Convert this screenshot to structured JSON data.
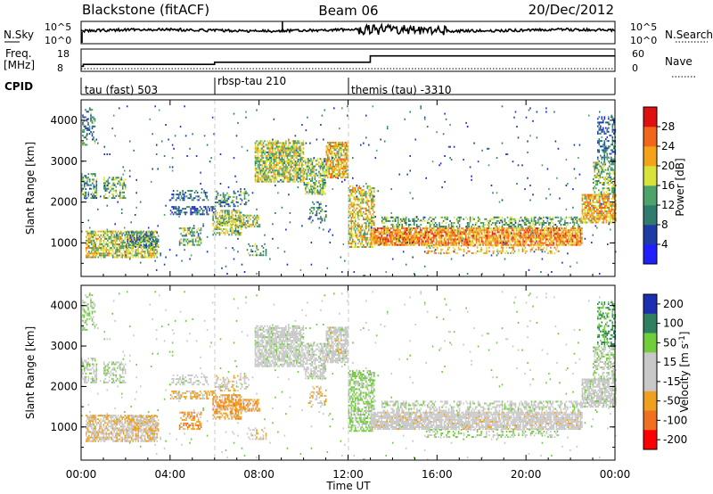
{
  "header": {
    "radar": "Blackstone (fitACF)",
    "beam": "Beam 06",
    "date": "20/Dec/2012"
  },
  "status_panels": {
    "nsky_label": "N.Sky",
    "nsky_ticks": [
      "10^5",
      "10^0"
    ],
    "nsearch_label": "N.Search",
    "nsearch_ticks": [
      "10^5",
      "10^0"
    ],
    "freq_label": "Freq.",
    "freq_units": "[MHz]",
    "freq_ticks": [
      "18",
      "8"
    ],
    "nave_label": "Nave",
    "nave_ticks": [
      "60",
      "0"
    ],
    "cpid_label": "CPID",
    "cpid_segments": [
      {
        "start_hour": 0,
        "end_hour": 6,
        "label": "tau (fast) 503"
      },
      {
        "start_hour": 6,
        "end_hour": 12,
        "label": "rbsp-tau 210"
      },
      {
        "start_hour": 12,
        "end_hour": 24,
        "label": "themis (tau) -3310"
      }
    ],
    "freq_steps": [
      {
        "hour": 0,
        "mhz": 9.3
      },
      {
        "hour": 0.1,
        "mhz": 10.3
      },
      {
        "hour": 6,
        "mhz": 11.4
      },
      {
        "hour": 13,
        "mhz": 14.8
      }
    ]
  },
  "chart_data": {
    "type": "heatmap",
    "x_range_hours": [
      0,
      24
    ],
    "xlabel": "Time UT",
    "x_ticks": [
      "00:00",
      "04:00",
      "08:00",
      "12:00",
      "16:00",
      "20:00",
      "00:00"
    ],
    "x_tick_hours": [
      0,
      4,
      8,
      12,
      16,
      20,
      24
    ],
    "ylabel": "Slant Range [km]",
    "ylim_km": [
      180,
      4500
    ],
    "y_ticks": [
      1000,
      2000,
      3000,
      4000
    ],
    "mode_change_hours": [
      6,
      12
    ],
    "power": {
      "colorbar_label": "Power [dB]",
      "colorbar_ticks": [
        "4",
        "8",
        "12",
        "16",
        "20",
        "24",
        "28"
      ],
      "range_db": [
        0,
        30
      ],
      "colors": [
        "#1f1fff",
        "#1e3ca8",
        "#2f7c6e",
        "#4da36a",
        "#d9e23a",
        "#f3a21a",
        "#f0661a",
        "#e01010"
      ]
    },
    "velocity": {
      "colorbar_label": "Velocity [m s^-1]",
      "colorbar_ticks": [
        "200",
        "100",
        "50",
        "15",
        "-15",
        "-50",
        "-100",
        "-200"
      ],
      "colors": [
        "#1c2fb0",
        "#2e8060",
        "#6fce3a",
        "#c8c8c8",
        "#c8c8c8",
        "#f0a020",
        "#f07020",
        "#ff0000"
      ]
    },
    "scatter_regions": [
      {
        "t0": 0.05,
        "t1": 0.6,
        "r0": 3400,
        "r1": 4300,
        "density": 0.35,
        "power": 10,
        "vel": 30
      },
      {
        "t0": 0.0,
        "t1": 0.7,
        "r0": 2100,
        "r1": 2700,
        "density": 0.55,
        "power": 12,
        "vel": 15
      },
      {
        "t0": 1.0,
        "t1": 2.0,
        "r0": 2100,
        "r1": 2600,
        "density": 0.5,
        "power": 13,
        "vel": 20
      },
      {
        "t0": 0.2,
        "t1": 3.4,
        "r0": 650,
        "r1": 1300,
        "density": 0.7,
        "power": 17,
        "vel": -25
      },
      {
        "t0": 2.0,
        "t1": 3.5,
        "r0": 900,
        "r1": 1300,
        "density": 0.5,
        "power": 10,
        "vel": -20
      },
      {
        "t0": 4.0,
        "t1": 5.7,
        "r0": 2050,
        "r1": 2300,
        "density": 0.45,
        "power": 9,
        "vel": 10
      },
      {
        "t0": 4.0,
        "t1": 6.0,
        "r0": 1700,
        "r1": 1900,
        "density": 0.5,
        "power": 8,
        "vel": -40
      },
      {
        "t0": 4.4,
        "t1": 5.4,
        "r0": 950,
        "r1": 1400,
        "density": 0.5,
        "power": 13,
        "vel": -60
      },
      {
        "t0": 5.9,
        "t1": 7.2,
        "r0": 1200,
        "r1": 1800,
        "density": 0.55,
        "power": 15,
        "vel": -60
      },
      {
        "t0": 6.2,
        "t1": 8.0,
        "r0": 1400,
        "r1": 1700,
        "density": 0.5,
        "power": 16,
        "vel": -55
      },
      {
        "t0": 6.0,
        "t1": 7.5,
        "r0": 1900,
        "r1": 2300,
        "density": 0.35,
        "power": 11,
        "vel": -20
      },
      {
        "t0": 7.5,
        "t1": 8.3,
        "r0": 700,
        "r1": 1000,
        "density": 0.35,
        "power": 12,
        "vel": -30
      },
      {
        "t0": 7.8,
        "t1": 10.0,
        "r0": 2500,
        "r1": 3500,
        "density": 0.75,
        "power": 16,
        "vel": 5
      },
      {
        "t0": 10.0,
        "t1": 11.0,
        "r0": 2200,
        "r1": 3100,
        "density": 0.6,
        "power": 14,
        "vel": 5
      },
      {
        "t0": 11.0,
        "t1": 12.0,
        "r0": 2600,
        "r1": 3500,
        "density": 0.75,
        "power": 19,
        "vel": 0
      },
      {
        "t0": 10.2,
        "t1": 11.0,
        "r0": 1500,
        "r1": 2000,
        "density": 0.3,
        "power": 10,
        "vel": -30
      },
      {
        "t0": 12.0,
        "t1": 13.2,
        "r0": 900,
        "r1": 2400,
        "density": 0.6,
        "power": 18,
        "vel": 40
      },
      {
        "t0": 13.0,
        "t1": 22.5,
        "r0": 950,
        "r1": 1400,
        "density": 0.85,
        "power": 22,
        "vel": -5
      },
      {
        "t0": 13.5,
        "t1": 22.5,
        "r0": 1400,
        "r1": 1650,
        "density": 0.45,
        "power": 13,
        "vel": 10
      },
      {
        "t0": 15.5,
        "t1": 21.5,
        "r0": 750,
        "r1": 950,
        "density": 0.3,
        "power": 20,
        "vel": 30
      },
      {
        "t0": 22.5,
        "t1": 24.0,
        "r0": 1500,
        "r1": 2200,
        "density": 0.75,
        "power": 20,
        "vel": 5
      },
      {
        "t0": 23.0,
        "t1": 24.0,
        "r0": 2200,
        "r1": 3000,
        "density": 0.5,
        "power": 14,
        "vel": 20
      },
      {
        "t0": 23.2,
        "t1": 24.0,
        "r0": 3000,
        "r1": 4100,
        "density": 0.45,
        "power": 8,
        "vel": 80
      },
      {
        "t0": 0.0,
        "t1": 24.0,
        "r0": 200,
        "r1": 4400,
        "density": 0.012,
        "power": 8,
        "vel": 30
      }
    ]
  }
}
